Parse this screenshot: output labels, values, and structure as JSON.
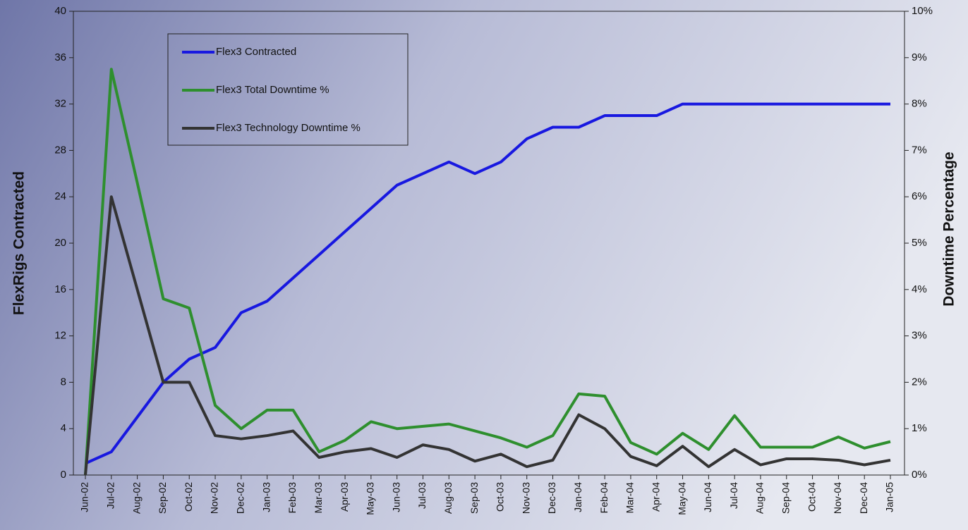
{
  "chart_data": {
    "type": "line",
    "y_label": "FlexRigs Contracted",
    "y2_label": "Downtime Percentage",
    "categories": [
      "Jun-02",
      "Jul-02",
      "Aug-02",
      "Sep-02",
      "Oct-02",
      "Nov-02",
      "Dec-02",
      "Jan-03",
      "Feb-03",
      "Mar-03",
      "Apr-03",
      "May-03",
      "Jun-03",
      "Jul-03",
      "Aug-03",
      "Sep-03",
      "Oct-03",
      "Nov-03",
      "Dec-03",
      "Jan-04",
      "Feb-04",
      "Mar-04",
      "Apr-04",
      "May-04",
      "Jun-04",
      "Jul-04",
      "Aug-04",
      "Sep-04",
      "Oct-04",
      "Nov-04",
      "Dec-04",
      "Jan-05"
    ],
    "series": [
      {
        "name": "Flex3 Contracted",
        "color": "#1818e0",
        "values": [
          1,
          2,
          5,
          8,
          10,
          11,
          14,
          15,
          17,
          19,
          21,
          23,
          25,
          26,
          27,
          26,
          27,
          29,
          30,
          30,
          31,
          31,
          31,
          32,
          32,
          32,
          32,
          32,
          32,
          32,
          32,
          32
        ]
      },
      {
        "name": "Flex3 Total Downtime %",
        "color": "#2e8f2e",
        "axis": "y2",
        "values": [
          0,
          8.75,
          6.3,
          3.8,
          3.6,
          1.5,
          1.0,
          1.4,
          1.4,
          0.5,
          0.75,
          1.15,
          1.0,
          1.05,
          1.1,
          0.95,
          0.8,
          0.6,
          0.85,
          1.75,
          1.7,
          0.7,
          0.45,
          0.9,
          0.55,
          1.28,
          0.6,
          0.6,
          0.6,
          0.82,
          0.58,
          0.72
        ]
      },
      {
        "name": "Flex3 Technology Downtime %",
        "color": "#333333",
        "axis": "y2",
        "values": [
          0,
          6.0,
          4.0,
          2.0,
          2.0,
          0.85,
          0.78,
          0.85,
          0.95,
          0.38,
          0.5,
          0.57,
          0.38,
          0.65,
          0.55,
          0.3,
          0.45,
          0.18,
          0.32,
          1.3,
          1.0,
          0.4,
          0.2,
          0.62,
          0.18,
          0.55,
          0.22,
          0.35,
          0.35,
          0.32,
          0.22,
          0.32
        ]
      }
    ],
    "ylim": [
      0,
      40
    ],
    "yticks": [
      0,
      4,
      8,
      12,
      16,
      20,
      24,
      28,
      32,
      36,
      40
    ],
    "y2lim": [
      0,
      10
    ],
    "y2ticks": [
      {
        "value": 0,
        "label": "0%"
      },
      {
        "value": 1,
        "label": "1%"
      },
      {
        "value": 2,
        "label": "2%"
      },
      {
        "value": 3,
        "label": "3%"
      },
      {
        "value": 4,
        "label": "4%"
      },
      {
        "value": 5,
        "label": "5%"
      },
      {
        "value": 6,
        "label": "6%"
      },
      {
        "value": 7,
        "label": "7%"
      },
      {
        "value": 8,
        "label": "8%"
      },
      {
        "value": 9,
        "label": "9%"
      },
      {
        "value": 10,
        "label": "10%"
      }
    ],
    "legend": "upper left"
  }
}
